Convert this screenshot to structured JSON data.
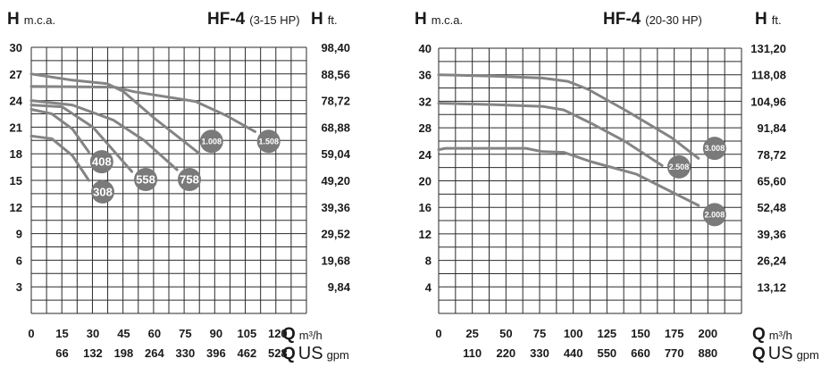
{
  "chart_data": [
    {
      "type": "line",
      "title": "HF-4",
      "subtitle": "(3-15 HP)",
      "ylabel": {
        "symbol": "H",
        "unit": "m.c.a."
      },
      "ylabel_right": {
        "symbol": "H",
        "unit": "ft."
      },
      "xlabel": {
        "symbol": "Q",
        "unit": "m³/h"
      },
      "xlabel2": {
        "symbol": "Q",
        "unit_a": "US",
        "unit_b": "gpm"
      },
      "xlim": [
        0,
        134
      ],
      "ylim": [
        0,
        30
      ],
      "grid": true,
      "x_ticks": [
        0,
        15,
        30,
        45,
        60,
        75,
        90,
        105,
        120
      ],
      "x_tick_labels": [
        "0",
        "15",
        "30",
        "45",
        "60",
        "75",
        "90",
        "105",
        "120"
      ],
      "x2_ticks": [
        15,
        30,
        45,
        60,
        75,
        90,
        105,
        120
      ],
      "x2_tick_labels": [
        "66",
        "132",
        "198",
        "264",
        "330",
        "396",
        "462",
        "528"
      ],
      "y_ticks": [
        30,
        27,
        24,
        21,
        18,
        15,
        12,
        9,
        6,
        3
      ],
      "y_tick_labels": [
        "30",
        "27",
        "24",
        "21",
        "18",
        "15",
        "12",
        "9",
        "6",
        "3"
      ],
      "y2_tick_labels": [
        "98,40",
        "88,56",
        "78,72",
        "68,88",
        "59,04",
        "49,20",
        "39,36",
        "29,52",
        "19,68",
        "9,84"
      ],
      "series": [
        {
          "name": "308",
          "points": [
            [
              0,
              20
            ],
            [
              10,
              19.7
            ],
            [
              20,
              17.8
            ],
            [
              28,
              15
            ]
          ],
          "label_at": [
            34.8,
            13.7
          ]
        },
        {
          "name": "408",
          "points": [
            [
              0,
              23
            ],
            [
              10,
              22.5
            ],
            [
              20,
              20.8
            ],
            [
              28,
              18.2
            ]
          ],
          "label_at": [
            34.3,
            17.1
          ]
        },
        {
          "name": "558",
          "points": [
            [
              0,
              23.5
            ],
            [
              15,
              23.3
            ],
            [
              30,
              21
            ],
            [
              49,
              16
            ]
          ],
          "label_at": [
            55.7,
            15.1
          ]
        },
        {
          "name": "758",
          "points": [
            [
              0,
              24
            ],
            [
              20,
              23.5
            ],
            [
              40,
              21.8
            ],
            [
              55,
              19.5
            ],
            [
              71,
              16.2
            ]
          ],
          "label_at": [
            77,
            15.1
          ]
        },
        {
          "name": "1.008",
          "points": [
            [
              0,
              27
            ],
            [
              20,
              26.3
            ],
            [
              37,
              25.9
            ],
            [
              45,
              25
            ],
            [
              60,
              22
            ],
            [
              82,
              18
            ]
          ],
          "label_at": [
            87.8,
            19.4
          ]
        },
        {
          "name": "1.508",
          "points": [
            [
              0,
              25.6
            ],
            [
              41,
              25.5
            ],
            [
              50,
              25
            ],
            [
              80,
              23.9
            ],
            [
              95,
              22.3
            ],
            [
              109,
              20.5
            ]
          ],
          "label_at": [
            115.6,
            19.4
          ]
        }
      ]
    },
    {
      "type": "line",
      "title": "HF-4",
      "subtitle": "(20-30 HP)",
      "ylabel": {
        "symbol": "H",
        "unit": "m.c.a."
      },
      "ylabel_right": {
        "symbol": "H",
        "unit": "ft."
      },
      "xlabel": {
        "symbol": "Q",
        "unit": "m³/h"
      },
      "xlabel2": {
        "symbol": "Q",
        "unit_a": "US",
        "unit_b": "gpm"
      },
      "xlim": [
        0,
        225
      ],
      "ylim": [
        0,
        40
      ],
      "grid": true,
      "x_ticks": [
        0,
        25,
        50,
        75,
        100,
        125,
        150,
        175,
        200
      ],
      "x_tick_labels": [
        "0",
        "25",
        "50",
        "75",
        "100",
        "125",
        "150",
        "175",
        "200"
      ],
      "x2_ticks": [
        25,
        50,
        75,
        100,
        125,
        150,
        175,
        200
      ],
      "x2_tick_labels": [
        "110",
        "220",
        "330",
        "440",
        "550",
        "660",
        "770",
        "880"
      ],
      "y_ticks": [
        40,
        36,
        32,
        28,
        24,
        20,
        16,
        12,
        8,
        4
      ],
      "y_tick_labels": [
        "40",
        "36",
        "32",
        "28",
        "24",
        "20",
        "16",
        "12",
        "8",
        "4"
      ],
      "y2_tick_labels": [
        "131,20",
        "118,08",
        "104,96",
        "91,84",
        "78,72",
        "65,60",
        "52,48",
        "39,36",
        "26,24",
        "13,12"
      ],
      "series": [
        {
          "name": "3.008",
          "points": [
            [
              0,
              36
            ],
            [
              40,
              35.8
            ],
            [
              77,
              35.5
            ],
            [
              96,
              35
            ],
            [
              111,
              33.8
            ],
            [
              140,
              30.5
            ],
            [
              173,
              26.5
            ],
            [
              193,
              23.4
            ]
          ],
          "label_at": [
            205,
            24.9
          ]
        },
        {
          "name": "2.508",
          "points": [
            [
              0,
              31.7
            ],
            [
              40,
              31.5
            ],
            [
              78,
              31.2
            ],
            [
              93,
              30.7
            ],
            [
              115,
              28.5
            ],
            [
              138,
              26
            ],
            [
              166,
              22.3
            ]
          ],
          "label_at": [
            178.5,
            22.1
          ]
        },
        {
          "name": "2.008",
          "points": [
            [
              0,
              24.7
            ],
            [
              5,
              24.9
            ],
            [
              65,
              24.9
            ],
            [
              77,
              24.4
            ],
            [
              93,
              24.3
            ],
            [
              113,
              22.9
            ],
            [
              147,
              21
            ],
            [
              193,
              16.3
            ]
          ],
          "label_at": [
            205,
            14.9
          ]
        }
      ]
    }
  ],
  "colors": {
    "curve": "#848484",
    "marker": "#7a7a7a",
    "grid": "#2a2a2a"
  }
}
